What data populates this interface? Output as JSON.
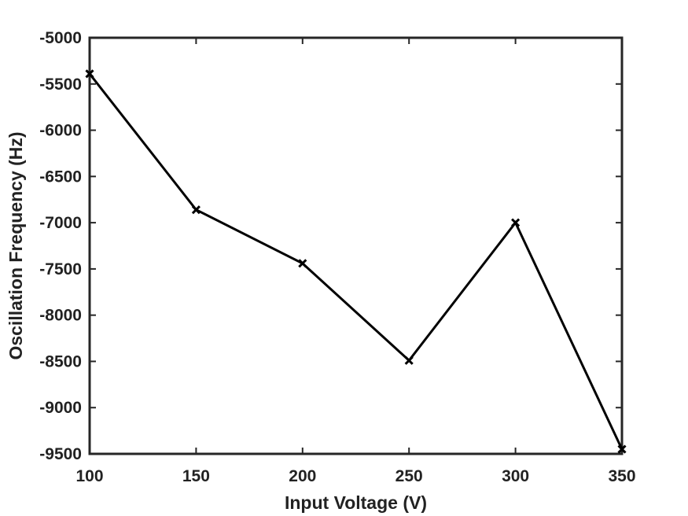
{
  "chart_data": {
    "type": "line",
    "title": "",
    "xlabel": "Input Voltage (V)",
    "ylabel": "Oscillation Frequency (Hz)",
    "xlim": [
      100,
      350
    ],
    "ylim": [
      -9500,
      -5000
    ],
    "xticks": [
      100,
      150,
      200,
      250,
      300,
      350
    ],
    "yticks": [
      -5000,
      -5500,
      -6000,
      -6500,
      -7000,
      -7500,
      -8000,
      -8500,
      -9000,
      -9500
    ],
    "grid": false,
    "legend": "none",
    "series": [
      {
        "marker": "x",
        "color": "#000000",
        "x": [
          100,
          150,
          200,
          250,
          300,
          350
        ],
        "y": [
          -5390,
          -6860,
          -7440,
          -8490,
          -7000,
          -9450
        ]
      }
    ]
  }
}
